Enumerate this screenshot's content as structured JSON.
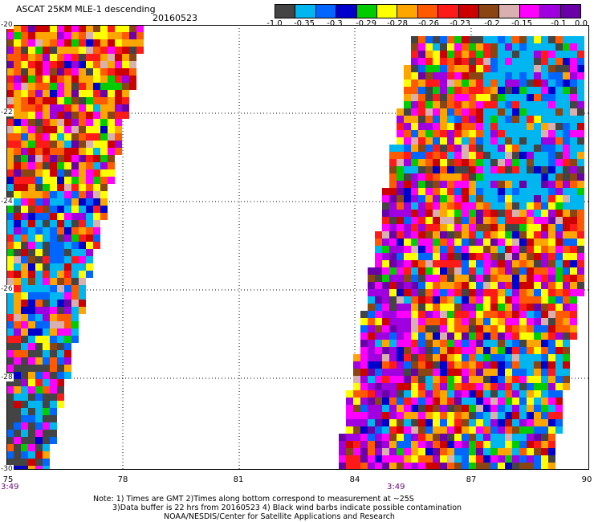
{
  "header": {
    "title": "ASCAT 25KM MLE-1 descending",
    "date": "20160523"
  },
  "colorbar": {
    "colors": [
      "#444444",
      "#00b6f0",
      "#0066ff",
      "#0000cc",
      "#00cc00",
      "#ffff00",
      "#ffa500",
      "#ff5a00",
      "#ff1a1a",
      "#cc0000",
      "#8b4513",
      "#d8b0b0",
      "#ff00ff",
      "#a000e0",
      "#6a00a8"
    ],
    "labels": [
      "-1.0",
      "-0.35",
      "-0.3",
      "-0.29",
      "-0.28",
      "-0.26",
      "-0.23",
      "-0.2",
      "-0.15",
      "-0.1",
      "0.0"
    ]
  },
  "map": {
    "lon_range": [
      75,
      90
    ],
    "lat_range": [
      -30,
      -20
    ],
    "x_ticks": [
      "75",
      "78",
      "81",
      "84",
      "87",
      "90"
    ],
    "y_ticks": [
      "-20",
      "-22",
      "-24",
      "-26",
      "-28",
      "-30"
    ],
    "pass_times": [
      "3:49",
      "3:49"
    ]
  },
  "notes": {
    "line1": "Note: 1) Times are GMT 2)Times along bottom correspond to measurement at ~25S",
    "line2": "3)Data buffer is 22 hrs from 20160523 4) Black wind barbs indicate possible contamination",
    "line3": "NOAA/NESDIS/Center for Satellite Applications and Research"
  }
}
